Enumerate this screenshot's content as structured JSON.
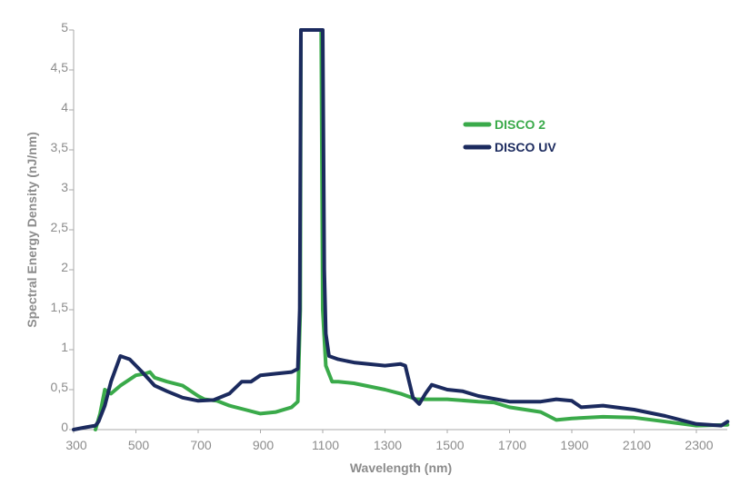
{
  "chart_data": {
    "type": "line",
    "title": "",
    "xlabel": "Wavelength (nm)",
    "ylabel": "Spectral Energy Density (nJ/nm)",
    "xlim": [
      300,
      2400
    ],
    "ylim": [
      0,
      5
    ],
    "xticks": [
      "300",
      "500",
      "700",
      "900",
      "1100",
      "1300",
      "1500",
      "1700",
      "1900",
      "2100",
      "2300"
    ],
    "yticks": [
      "0",
      "0,5",
      "1",
      "1,5",
      "2",
      "2,5",
      "3",
      "3,5",
      "4",
      "4,5",
      "5"
    ],
    "grid": false,
    "legend_position": "right",
    "series": [
      {
        "name": "DISCO 2",
        "color": "#3aaa4a",
        "x": [
          370,
          385,
          400,
          420,
          450,
          500,
          530,
          545,
          560,
          600,
          650,
          700,
          720,
          760,
          800,
          850,
          900,
          950,
          1000,
          1020,
          1028,
          1030,
          1095,
          1100,
          1110,
          1130,
          1150,
          1200,
          1300,
          1350,
          1400,
          1500,
          1600,
          1650,
          1700,
          1800,
          1850,
          1900,
          2000,
          2100,
          2200,
          2300,
          2400
        ],
        "y": [
          0,
          0.2,
          0.5,
          0.45,
          0.55,
          0.68,
          0.7,
          0.72,
          0.65,
          0.6,
          0.55,
          0.42,
          0.38,
          0.36,
          0.3,
          0.25,
          0.2,
          0.22,
          0.28,
          0.35,
          1.5,
          5,
          5,
          1.5,
          0.8,
          0.6,
          0.6,
          0.58,
          0.5,
          0.45,
          0.38,
          0.38,
          0.35,
          0.34,
          0.28,
          0.22,
          0.12,
          0.14,
          0.16,
          0.15,
          0.1,
          0.05,
          0.06
        ]
      },
      {
        "name": "DISCO UV",
        "color": "#1b2a5e",
        "x": [
          300,
          340,
          370,
          380,
          400,
          420,
          450,
          480,
          520,
          560,
          600,
          650,
          700,
          750,
          800,
          840,
          870,
          900,
          950,
          1000,
          1020,
          1026,
          1030,
          1100,
          1105,
          1110,
          1120,
          1150,
          1200,
          1300,
          1350,
          1365,
          1390,
          1410,
          1430,
          1450,
          1500,
          1550,
          1600,
          1700,
          1800,
          1850,
          1900,
          1930,
          2000,
          2100,
          2200,
          2300,
          2380,
          2400
        ],
        "y": [
          0,
          0.03,
          0.05,
          0.1,
          0.3,
          0.6,
          0.92,
          0.88,
          0.72,
          0.55,
          0.48,
          0.4,
          0.36,
          0.37,
          0.45,
          0.6,
          0.6,
          0.68,
          0.7,
          0.72,
          0.76,
          1.5,
          5,
          5,
          2,
          1.2,
          0.92,
          0.88,
          0.84,
          0.8,
          0.82,
          0.8,
          0.4,
          0.32,
          0.45,
          0.56,
          0.5,
          0.48,
          0.42,
          0.35,
          0.35,
          0.38,
          0.36,
          0.28,
          0.3,
          0.25,
          0.17,
          0.07,
          0.05,
          0.1
        ]
      }
    ]
  }
}
